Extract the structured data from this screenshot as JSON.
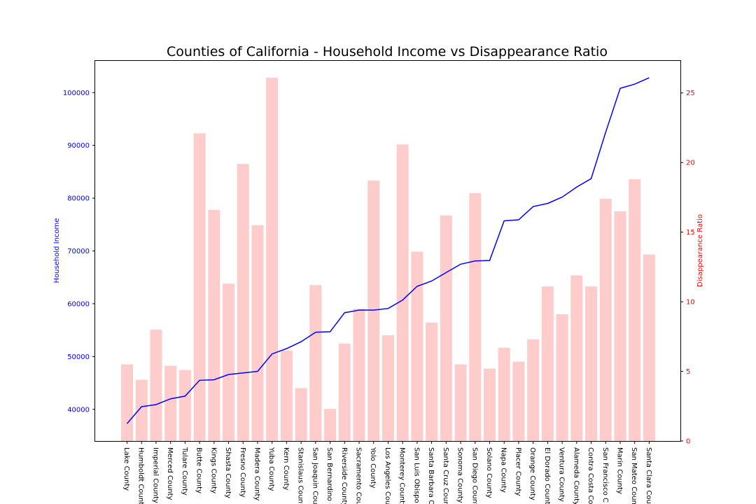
{
  "chart_data": {
    "type": "bar+line",
    "title": "Counties of California - Household Income vs Disappearance Ratio",
    "ylabel_left": "Household Income",
    "ylabel_right": "Disappearance Ratio",
    "ylim_left": [
      34000,
      106000
    ],
    "ylim_right": [
      0,
      27.3
    ],
    "yticks_left": [
      40000,
      50000,
      60000,
      70000,
      80000,
      90000,
      100000
    ],
    "yticks_right": [
      0,
      5,
      10,
      15,
      20,
      25
    ],
    "grid": false,
    "colors": {
      "line": "#0000ff",
      "bar": "#ffcccc",
      "left_axis": "#0000ff",
      "right_axis": "#ff0000"
    },
    "categories": [
      "Lake County",
      "Humboldt County",
      "Imperial County",
      "Merced County",
      "Tulare County",
      "Butte County",
      "Kings County",
      "Shasta County",
      "Fresno County",
      "Madera County",
      "Yuba County",
      "Kern County",
      "Stanislaus County",
      "San Joaquin County",
      "San Bernardino County",
      "Riverside County",
      "Sacramento County",
      "Yolo County",
      "Los Angeles County",
      "Monterey County",
      "San Luis Obispo County",
      "Santa Barbara County",
      "Santa Cruz County",
      "Sonoma County",
      "San Diego County",
      "Solano County",
      "Napa County",
      "Placer County",
      "Orange County",
      "El Dorado County",
      "Ventura County",
      "Alameda County",
      "Contra Costa County",
      "San Francisco County",
      "Marin County",
      "San Mateo County",
      "Santa Clara County"
    ],
    "tick_labels": [
      "Lake County",
      "Humboldt Count",
      "Imperial County",
      "Merced County",
      "Tulare County",
      "Butte County",
      "Kings County",
      "Shasta County",
      "Fresno County",
      "Madera County",
      "Yuba County",
      "Kern County",
      "Stanislaus Count",
      "San Joaquin Cou",
      "San Bernardino C",
      "Riverside County",
      "Sacramento Cou",
      "Yolo County",
      "Los Angeles Cou",
      "Monterey County",
      "San Luis Obispo",
      "Santa Barbara C",
      "Santa Cruz Coun",
      "Sonoma County",
      "San Diego Count",
      "Solano County",
      "Napa County",
      "Placer County",
      "Orange County",
      "El Dorado Count",
      "Ventura County",
      "Alameda County",
      "Contra Costa Co",
      "San Francisco C",
      "Marin County",
      "San Mateo Coun",
      "Santa Clara Cou"
    ],
    "series": [
      {
        "type": "bar",
        "axis": "right",
        "values": [
          5.5,
          4.4,
          8.0,
          5.4,
          5.1,
          22.1,
          16.6,
          11.3,
          19.9,
          15.5,
          26.1,
          6.5,
          3.8,
          11.2,
          2.3,
          7.0,
          9.5,
          18.7,
          7.6,
          21.3,
          13.6,
          8.5,
          16.2,
          5.5,
          17.8,
          5.2,
          6.7,
          5.7,
          7.3,
          11.1,
          9.1,
          11.9,
          11.1,
          17.4,
          16.5,
          18.8,
          13.4
        ]
      },
      {
        "type": "line",
        "axis": "left",
        "values": [
          37300,
          40500,
          40900,
          42000,
          42500,
          45500,
          45600,
          46600,
          46900,
          47200,
          50500,
          51500,
          52800,
          54600,
          54700,
          58300,
          58800,
          58800,
          59100,
          60700,
          63300,
          64300,
          65900,
          67500,
          68100,
          68200,
          75700,
          75900,
          78400,
          79000,
          80200,
          82100,
          83700,
          92500,
          100800,
          101600,
          102800
        ]
      }
    ]
  }
}
